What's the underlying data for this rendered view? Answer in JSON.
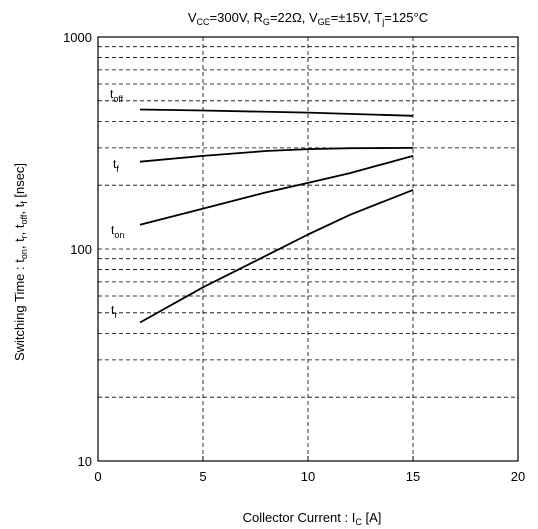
{
  "chart_data": {
    "type": "line",
    "title_parts": {
      "v": "V",
      "v_sub": "CC",
      "v_val": "=300V, ",
      "r": "R",
      "r_sub": "G",
      "r_val": "=22Ω, ",
      "vge": "V",
      "vge_sub": "GE",
      "vge_val": "=±15V, ",
      "t": "T",
      "t_sub": "j",
      "t_val": "=125°C"
    },
    "xlabel_parts": {
      "main": "Collector Current  :  I",
      "sub": "C",
      "unit": "  [A]"
    },
    "ylabel_parts": {
      "p1": "Switching Time :  t",
      "s1": "on",
      "p2": ", t",
      "s2": "r",
      "p3": ", t",
      "s3": "off",
      "p4": ", t",
      "s4": "f",
      "p5": " [nsec]"
    },
    "x_ticks": [
      "0",
      "5",
      "10",
      "15",
      "20"
    ],
    "y_ticks": [
      "10",
      "100",
      "1000"
    ],
    "xlim": [
      0,
      20
    ],
    "ylim": [
      10,
      1000
    ],
    "y_scale": "log",
    "grid": "dashed",
    "series": [
      {
        "name": "t_off",
        "label_main": "t",
        "label_sub": "off",
        "x": [
          2,
          5,
          10,
          15
        ],
        "y": [
          455,
          450,
          440,
          425
        ]
      },
      {
        "name": "t_f",
        "label_main": "t",
        "label_sub": "f",
        "x": [
          2,
          5,
          8,
          10,
          12,
          15
        ],
        "y": [
          258,
          275,
          290,
          296,
          299,
          300
        ]
      },
      {
        "name": "t_on",
        "label_main": "t",
        "label_sub": "on",
        "x": [
          2,
          5,
          8,
          10,
          12,
          15
        ],
        "y": [
          130,
          155,
          185,
          205,
          228,
          275
        ]
      },
      {
        "name": "t_r",
        "label_main": "t",
        "label_sub": "r",
        "x": [
          2,
          5,
          8,
          10,
          12,
          15
        ],
        "y": [
          45,
          66,
          93,
          117,
          145,
          190
        ]
      }
    ]
  }
}
